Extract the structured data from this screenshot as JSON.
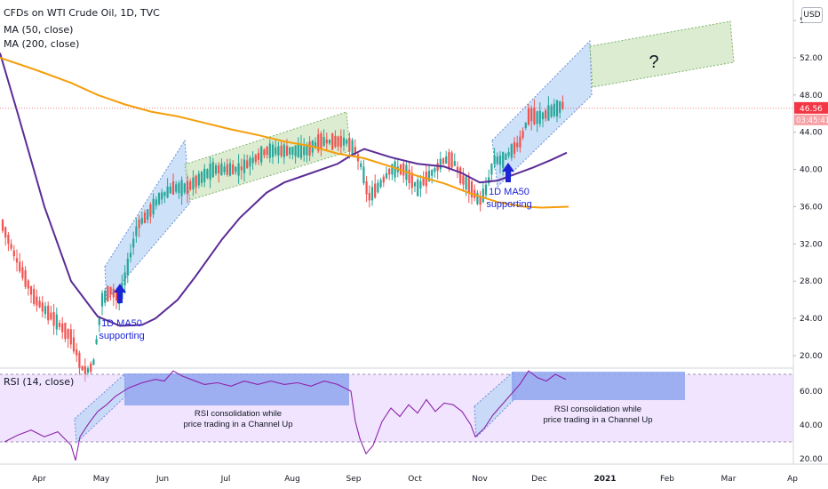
{
  "legend": {
    "title": "CFDs on WTI Crude Oil, 1D, TVC",
    "ma50": "MA (50, close)",
    "ma200": "MA (200, close)",
    "rsi": "RSI (14, close)"
  },
  "usd_button": "USD",
  "colors": {
    "up": "#26a69a",
    "down": "#ef5350",
    "ma50": "#5b2c96",
    "ma200": "#f59e0b",
    "arrow": "#1d24d6",
    "annotation_text": "#1d24d6",
    "rsi_line": "#8e24aa",
    "rsi_band": "#e9d8fd",
    "channel_blue": "#bcd7f5",
    "channel_green": "#cfe6c1",
    "price_label": "#f23645"
  },
  "chart_data": [
    {
      "type": "candlestick",
      "title": "CFDs on WTI Crude Oil, 1D, TVC",
      "x_tick_labels": [
        "Apr",
        "May",
        "Jun",
        "Jul",
        "Aug",
        "Sep",
        "Oct",
        "Nov",
        "Dec",
        "2021",
        "Feb",
        "Mar",
        "Ap"
      ],
      "y_tick_labels": [
        "20.00",
        "24.00",
        "28.00",
        "32.00",
        "36.00",
        "40.00",
        "44.00",
        "48.00",
        "52.00",
        "56.00"
      ],
      "ylim": [
        16,
        57
      ],
      "last_price": "46.56",
      "countdown": "03:45:41",
      "series": [
        {
          "name": "MA (50, close)",
          "points": [
            [
              0,
              52.5
            ],
            [
              20,
              46
            ],
            [
              50,
              36
            ],
            [
              80,
              28
            ],
            [
              110,
              24.2
            ],
            [
              135,
              23.2
            ],
            [
              160,
              23.3
            ],
            [
              175,
              24
            ],
            [
              200,
              26
            ],
            [
              220,
              28.5
            ],
            [
              250,
              32.5
            ],
            [
              270,
              34.8
            ],
            [
              300,
              37.5
            ],
            [
              320,
              38.6
            ],
            [
              350,
              39.6
            ],
            [
              380,
              40.6
            ],
            [
              395,
              41.5
            ],
            [
              410,
              42.2
            ],
            [
              440,
              41.3
            ],
            [
              470,
              40.6
            ],
            [
              500,
              40.3
            ],
            [
              520,
              39.6
            ],
            [
              540,
              38.6
            ],
            [
              560,
              38.8
            ],
            [
              580,
              39.5
            ],
            [
              600,
              40.2
            ],
            [
              620,
              41
            ],
            [
              638,
              41.8
            ]
          ]
        },
        {
          "name": "MA (200, close)",
          "points": [
            [
              0,
              52
            ],
            [
              40,
              50.7
            ],
            [
              80,
              49.3
            ],
            [
              110,
              48
            ],
            [
              140,
              47
            ],
            [
              170,
              46.2
            ],
            [
              200,
              45.7
            ],
            [
              230,
              45
            ],
            [
              260,
              44.3
            ],
            [
              290,
              43.7
            ],
            [
              320,
              43
            ],
            [
              350,
              42.5
            ],
            [
              380,
              41.7
            ],
            [
              410,
              41.2
            ],
            [
              440,
              40.3
            ],
            [
              470,
              39.3
            ],
            [
              500,
              38.5
            ],
            [
              530,
              37.4
            ],
            [
              560,
              36.5
            ],
            [
              590,
              36
            ],
            [
              610,
              35.9
            ],
            [
              640,
              36
            ]
          ]
        }
      ],
      "annotations": [
        {
          "text": "1D MA50",
          "text2": "supporting"
        },
        {
          "text": "1D MA50",
          "text2": "supporting"
        },
        {
          "text": "?"
        }
      ]
    },
    {
      "type": "line",
      "title": "RSI (14, close)",
      "y_tick_labels": [
        "20.00",
        "40.00",
        "60.00"
      ],
      "ylim": [
        15,
        75
      ],
      "band": [
        30,
        70
      ],
      "series": [
        {
          "name": "RSI (14, close)",
          "points": [
            [
              5,
              30
            ],
            [
              20,
              34
            ],
            [
              35,
              37
            ],
            [
              50,
              33
            ],
            [
              65,
              36
            ],
            [
              80,
              28
            ],
            [
              85,
              19
            ],
            [
              90,
              33
            ],
            [
              100,
              41
            ],
            [
              110,
              48
            ],
            [
              120,
              52
            ],
            [
              130,
              57
            ],
            [
              145,
              62
            ],
            [
              160,
              65
            ],
            [
              175,
              67
            ],
            [
              185,
              66
            ],
            [
              195,
              72
            ],
            [
              205,
              69
            ],
            [
              215,
              67
            ],
            [
              230,
              64
            ],
            [
              245,
              65
            ],
            [
              260,
              63
            ],
            [
              275,
              66
            ],
            [
              290,
              64
            ],
            [
              305,
              66
            ],
            [
              320,
              64
            ],
            [
              335,
              65
            ],
            [
              350,
              63
            ],
            [
              365,
              66
            ],
            [
              380,
              64
            ],
            [
              395,
              60
            ],
            [
              400,
              42
            ],
            [
              405,
              32
            ],
            [
              412,
              23
            ],
            [
              420,
              28
            ],
            [
              430,
              42
            ],
            [
              440,
              50
            ],
            [
              450,
              45
            ],
            [
              460,
              52
            ],
            [
              470,
              47
            ],
            [
              480,
              55
            ],
            [
              490,
              48
            ],
            [
              500,
              53
            ],
            [
              510,
              52
            ],
            [
              520,
              48
            ],
            [
              530,
              40
            ],
            [
              535,
              33
            ],
            [
              545,
              38
            ],
            [
              555,
              46
            ],
            [
              565,
              52
            ],
            [
              575,
              58
            ],
            [
              585,
              64
            ],
            [
              595,
              72
            ],
            [
              605,
              68
            ],
            [
              615,
              66
            ],
            [
              625,
              70
            ],
            [
              637,
              67
            ]
          ]
        }
      ],
      "annotations": [
        {
          "text": "RSI consolidation while",
          "text2": "price trading in a Channel Up"
        },
        {
          "text": "RSI consolidation while",
          "text2": "price trading in a Channel Up"
        }
      ]
    }
  ]
}
